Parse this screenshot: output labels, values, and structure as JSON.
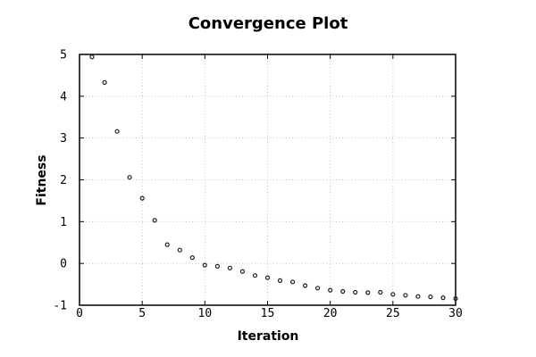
{
  "chart_data": {
    "type": "scatter",
    "title": "Convergence Plot",
    "xlabel": "Iteration",
    "ylabel": "Fitness",
    "xlim": [
      0,
      30
    ],
    "ylim": [
      -1,
      5
    ],
    "xticks": [
      0,
      5,
      10,
      15,
      20,
      25,
      30
    ],
    "yticks": [
      -1,
      0,
      1,
      2,
      3,
      4,
      5
    ],
    "grid": true,
    "legend": "none",
    "marker": "open-circle",
    "x": [
      1,
      2,
      3,
      4,
      5,
      6,
      7,
      8,
      9,
      10,
      11,
      12,
      13,
      14,
      15,
      16,
      17,
      18,
      19,
      20,
      21,
      22,
      23,
      24,
      25,
      26,
      27,
      28,
      29,
      30
    ],
    "y": [
      4.94,
      4.33,
      3.16,
      2.06,
      1.56,
      1.03,
      0.45,
      0.32,
      0.14,
      -0.04,
      -0.07,
      -0.11,
      -0.19,
      -0.29,
      -0.34,
      -0.41,
      -0.44,
      -0.53,
      -0.59,
      -0.64,
      -0.67,
      -0.69,
      -0.7,
      -0.69,
      -0.74,
      -0.76,
      -0.79,
      -0.8,
      -0.82,
      -0.84
    ],
    "colors": {
      "marker": "#202020",
      "grid": "#c4c4c4",
      "axis": "#000000",
      "background": "#ffffff"
    }
  }
}
